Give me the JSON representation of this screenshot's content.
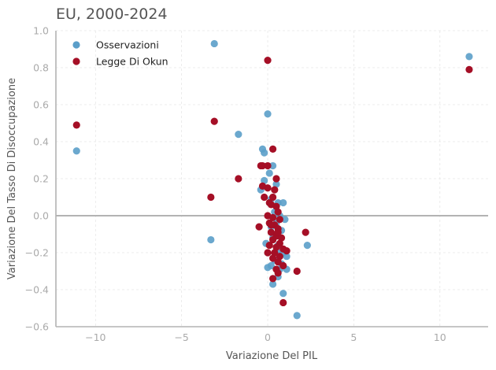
{
  "chart_data": {
    "type": "scatter",
    "title": "EU, 2000-2024",
    "xlabel": "Variazione Del PIL",
    "ylabel": "Variazione Del Tasso Di Disoccupazione",
    "xlim": [
      -12.3,
      12.8
    ],
    "ylim": [
      -0.6,
      1.0
    ],
    "xticks": [
      -10,
      -5,
      0,
      5,
      10
    ],
    "yticks": [
      -0.6,
      -0.4,
      -0.2,
      0.0,
      0.2,
      0.4,
      0.6,
      0.8,
      1.0
    ],
    "xtick_labels": [
      "−10",
      "−5",
      "0",
      "5",
      "10"
    ],
    "ytick_labels": [
      "−0.6",
      "−0.4",
      "−0.2",
      "0.0",
      "0.2",
      "0.4",
      "0.6",
      "0.8",
      "1.0"
    ],
    "grid": true,
    "legend_position": "top-left",
    "zero_line": true,
    "colors": {
      "observations": "#5b9ec9",
      "okun": "#a50f26"
    },
    "series": [
      {
        "name": "Osservazioni",
        "points": [
          [
            -11.1,
            0.35
          ],
          [
            -3.1,
            0.93
          ],
          [
            11.7,
            0.86
          ],
          [
            -1.7,
            0.44
          ],
          [
            0.0,
            0.55
          ],
          [
            -3.3,
            -0.13
          ],
          [
            -0.3,
            0.36
          ],
          [
            -0.2,
            0.34
          ],
          [
            -0.4,
            0.14
          ],
          [
            0.3,
            0.27
          ],
          [
            0.1,
            0.23
          ],
          [
            0.5,
            0.17
          ],
          [
            -0.2,
            0.19
          ],
          [
            0.2,
            0.09
          ],
          [
            0.6,
            0.07
          ],
          [
            0.9,
            0.07
          ],
          [
            1.0,
            -0.02
          ],
          [
            0.7,
            0.0
          ],
          [
            0.5,
            -0.04
          ],
          [
            0.8,
            -0.08
          ],
          [
            0.3,
            -0.12
          ],
          [
            0.6,
            -0.16
          ],
          [
            1.1,
            -0.22
          ],
          [
            0.9,
            -0.2
          ],
          [
            0.4,
            -0.24
          ],
          [
            0.2,
            -0.27
          ],
          [
            0.7,
            -0.29
          ],
          [
            0.0,
            -0.28
          ],
          [
            1.1,
            -0.29
          ],
          [
            0.6,
            -0.33
          ],
          [
            0.3,
            -0.37
          ],
          [
            0.9,
            -0.42
          ],
          [
            1.7,
            -0.54
          ],
          [
            2.3,
            -0.16
          ],
          [
            0.5,
            -0.1
          ],
          [
            -0.1,
            -0.15
          ],
          [
            0.8,
            -0.26
          ],
          [
            0.4,
            0.02
          ],
          [
            0.2,
            -0.06
          ],
          [
            0.6,
            -0.2
          ]
        ]
      },
      {
        "name": "Legge Di Okun",
        "points": [
          [
            -11.1,
            0.49
          ],
          [
            -3.1,
            0.51
          ],
          [
            11.7,
            0.79
          ],
          [
            0.0,
            0.84
          ],
          [
            -3.3,
            0.1
          ],
          [
            -1.7,
            0.2
          ],
          [
            0.3,
            0.36
          ],
          [
            -0.4,
            0.27
          ],
          [
            -0.3,
            0.27
          ],
          [
            0.0,
            0.27
          ],
          [
            0.5,
            0.2
          ],
          [
            0.0,
            0.15
          ],
          [
            0.4,
            0.14
          ],
          [
            -0.3,
            0.16
          ],
          [
            0.3,
            0.1
          ],
          [
            -0.2,
            0.1
          ],
          [
            0.1,
            0.07
          ],
          [
            0.5,
            0.05
          ],
          [
            0.2,
            0.06
          ],
          [
            0.6,
            0.02
          ],
          [
            0.0,
            0.0
          ],
          [
            0.3,
            -0.01
          ],
          [
            0.7,
            -0.02
          ],
          [
            0.1,
            -0.04
          ],
          [
            0.4,
            -0.05
          ],
          [
            -0.5,
            -0.06
          ],
          [
            0.6,
            -0.07
          ],
          [
            0.2,
            -0.09
          ],
          [
            0.5,
            -0.11
          ],
          [
            0.8,
            -0.12
          ],
          [
            0.3,
            -0.13
          ],
          [
            0.7,
            -0.15
          ],
          [
            0.1,
            -0.16
          ],
          [
            0.5,
            -0.17
          ],
          [
            0.9,
            -0.18
          ],
          [
            1.1,
            -0.19
          ],
          [
            0.4,
            -0.2
          ],
          [
            0.0,
            -0.2
          ],
          [
            0.7,
            -0.22
          ],
          [
            0.3,
            -0.23
          ],
          [
            0.6,
            -0.25
          ],
          [
            0.9,
            -0.27
          ],
          [
            0.5,
            -0.29
          ],
          [
            1.7,
            -0.3
          ],
          [
            0.6,
            -0.31
          ],
          [
            0.3,
            -0.34
          ],
          [
            0.9,
            -0.47
          ],
          [
            2.2,
            -0.09
          ],
          [
            0.2,
            -0.05
          ],
          [
            0.6,
            -0.09
          ]
        ]
      }
    ]
  }
}
